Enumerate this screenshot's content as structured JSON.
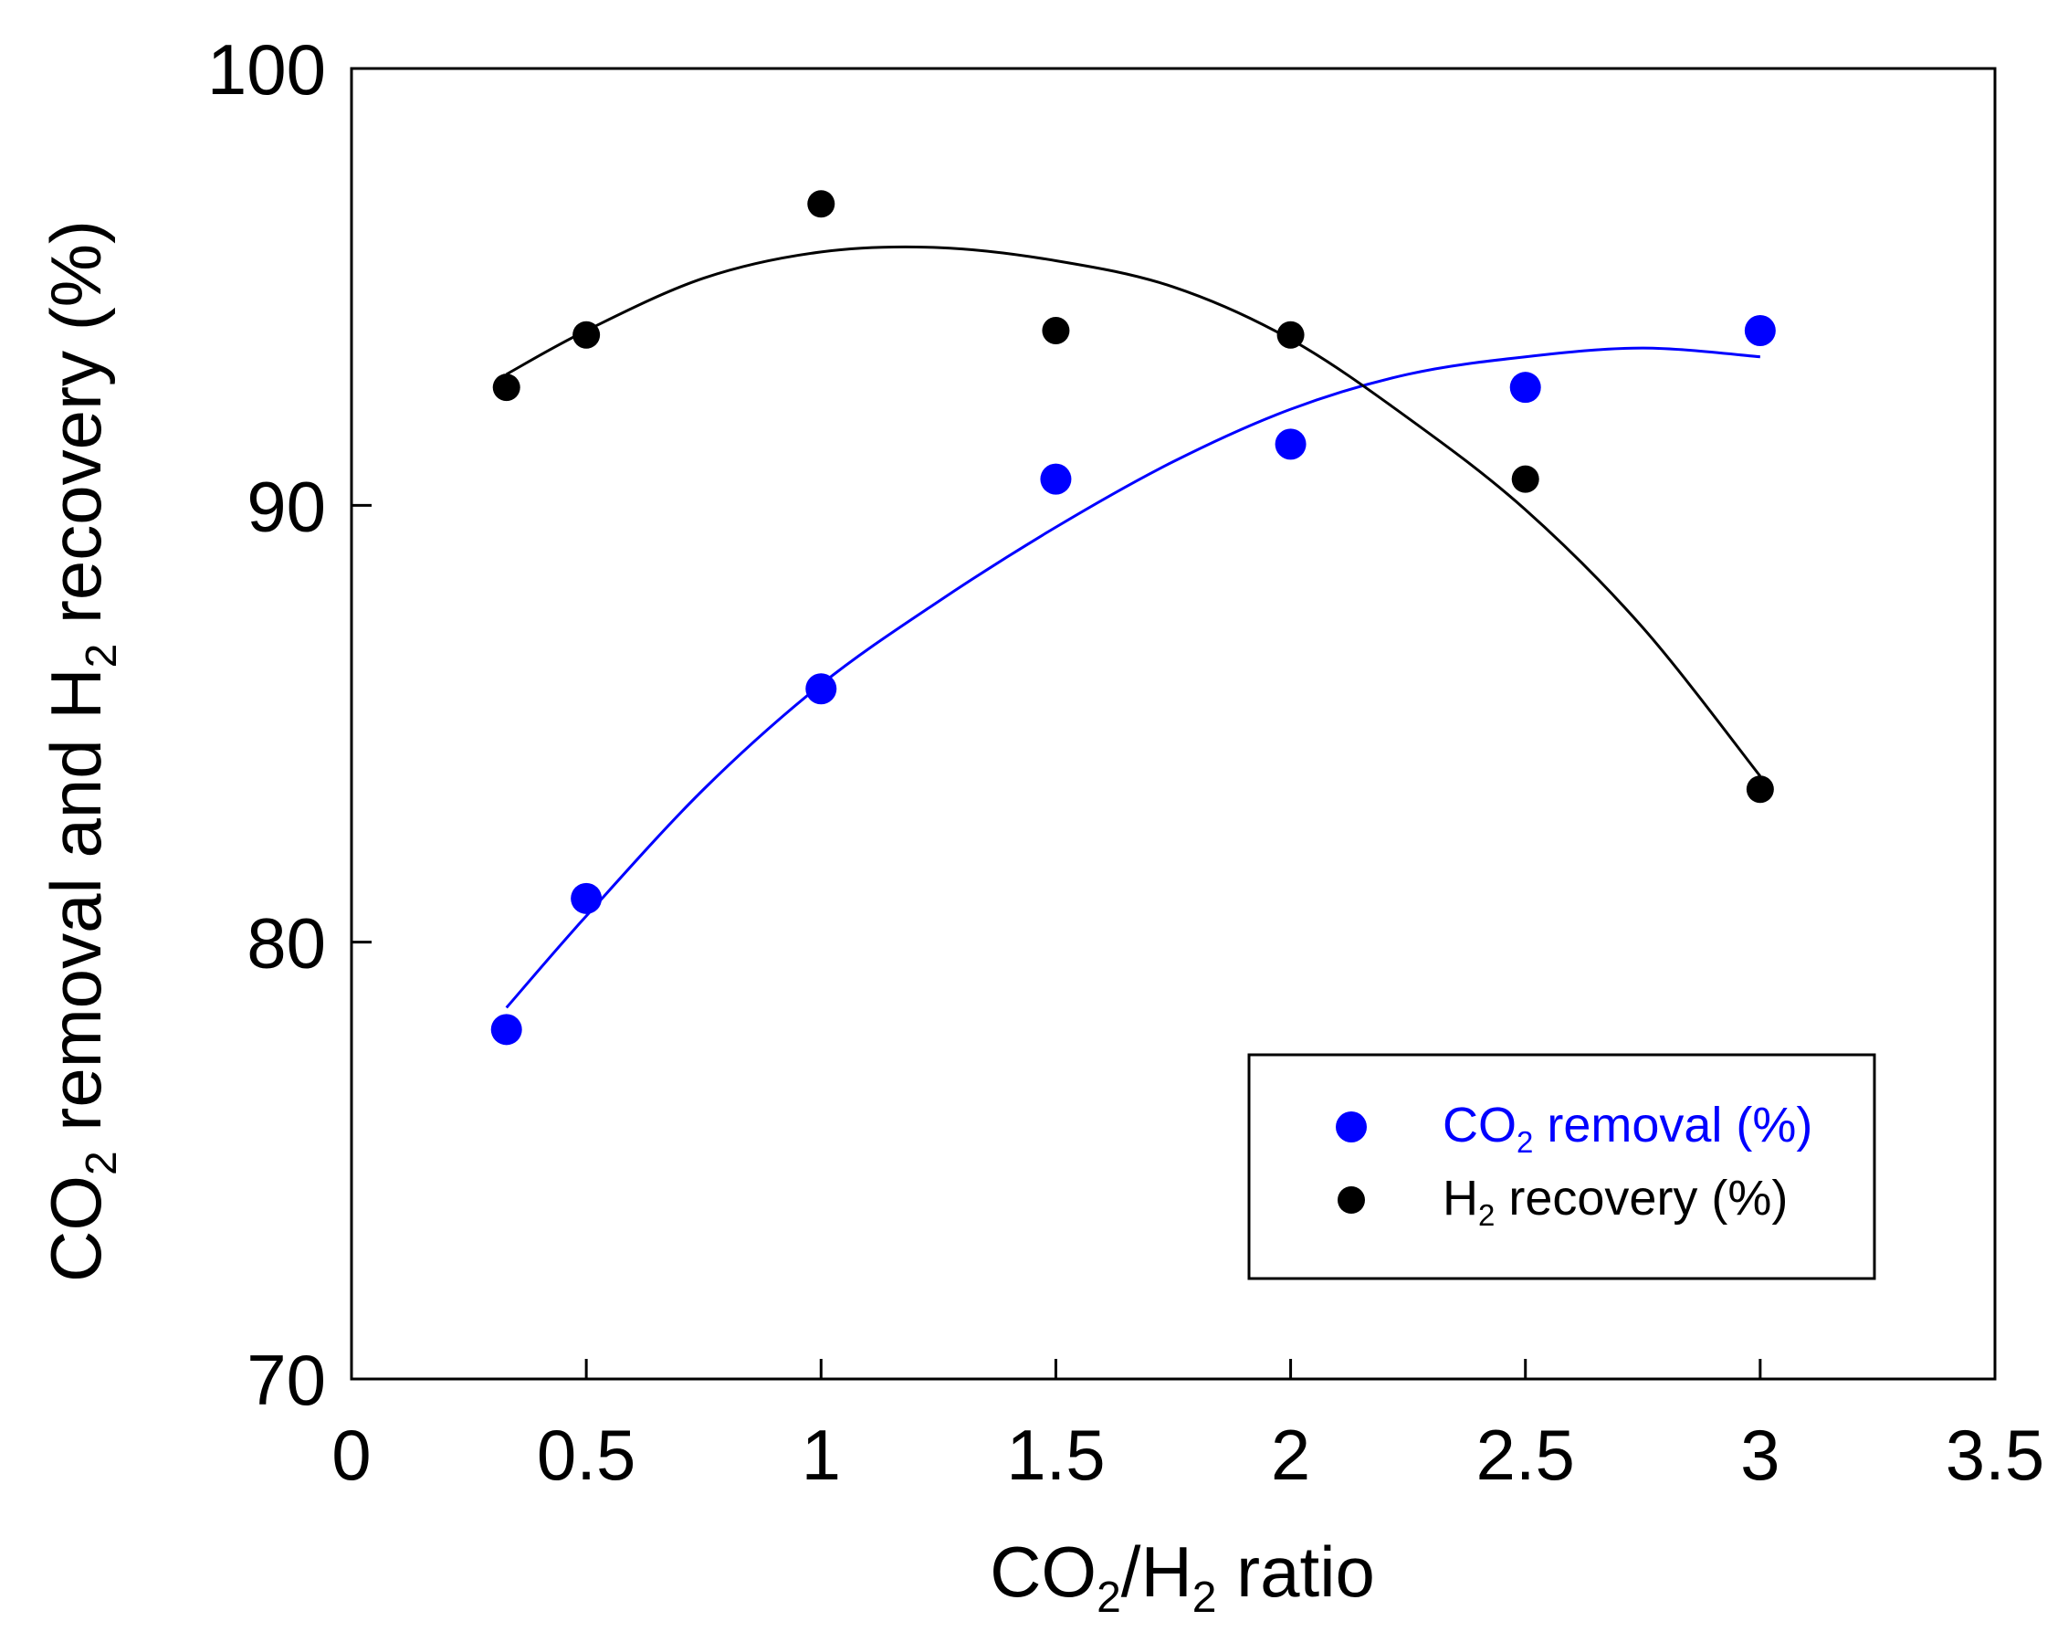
{
  "chart_data": {
    "type": "scatter",
    "title": "",
    "xlabel": {
      "parts": [
        "CO",
        "2",
        "/H",
        "2",
        " ratio"
      ]
    },
    "ylabel": {
      "parts": [
        "CO",
        "2",
        " removal and H",
        "2",
        " recovery (%)"
      ]
    },
    "xlim": [
      0,
      3.5
    ],
    "ylim": [
      70,
      100
    ],
    "x_ticks": [
      0,
      0.5,
      1,
      1.5,
      2,
      2.5,
      3,
      3.5
    ],
    "x_tick_labels": [
      "0",
      "0.5",
      "1",
      "1.5",
      "2",
      "2.5",
      "3",
      "3.5"
    ],
    "y_ticks": [
      70,
      80,
      90,
      100
    ],
    "y_tick_labels": [
      "70",
      "80",
      "90",
      "100"
    ],
    "grid": false,
    "legend_position": "bottom-right",
    "series": [
      {
        "name": "CO2 removal (%)",
        "legend_parts": [
          "CO",
          "2",
          " removal (%)"
        ],
        "color": "#0000ff",
        "marker": "circle",
        "x": [
          0.33,
          0.5,
          1,
          1.5,
          2,
          2.5,
          3
        ],
        "y": [
          78.0,
          81.0,
          85.8,
          90.6,
          91.4,
          92.7,
          94.0
        ],
        "fit_curve": {
          "x_start": 0.33,
          "x_end": 3,
          "points": [
            [
              0.33,
              78.5
            ],
            [
              0.5,
              80.6
            ],
            [
              0.75,
              83.5
            ],
            [
              1.0,
              85.9
            ],
            [
              1.25,
              87.8
            ],
            [
              1.5,
              89.5
            ],
            [
              1.75,
              91.0
            ],
            [
              2.0,
              92.2
            ],
            [
              2.25,
              93.0
            ],
            [
              2.5,
              93.4
            ],
            [
              2.75,
              93.6
            ],
            [
              3.0,
              93.4
            ]
          ]
        }
      },
      {
        "name": "H2 recovery (%)",
        "legend_parts": [
          "H",
          "2",
          " recovery (%)"
        ],
        "color": "#000000",
        "marker": "circle",
        "x": [
          0.33,
          0.5,
          1,
          1.5,
          2,
          2.5,
          3
        ],
        "y": [
          92.7,
          93.9,
          96.9,
          94.0,
          93.9,
          90.6,
          83.5
        ],
        "fit_curve": {
          "x_start": 0.33,
          "x_end": 3,
          "points": [
            [
              0.33,
              93.0
            ],
            [
              0.5,
              94.0
            ],
            [
              0.75,
              95.2
            ],
            [
              1.0,
              95.8
            ],
            [
              1.25,
              95.9
            ],
            [
              1.5,
              95.6
            ],
            [
              1.75,
              95.0
            ],
            [
              2.0,
              93.8
            ],
            [
              2.25,
              92.0
            ],
            [
              2.5,
              89.9
            ],
            [
              2.75,
              87.2
            ],
            [
              3.0,
              83.8
            ]
          ]
        }
      }
    ]
  }
}
